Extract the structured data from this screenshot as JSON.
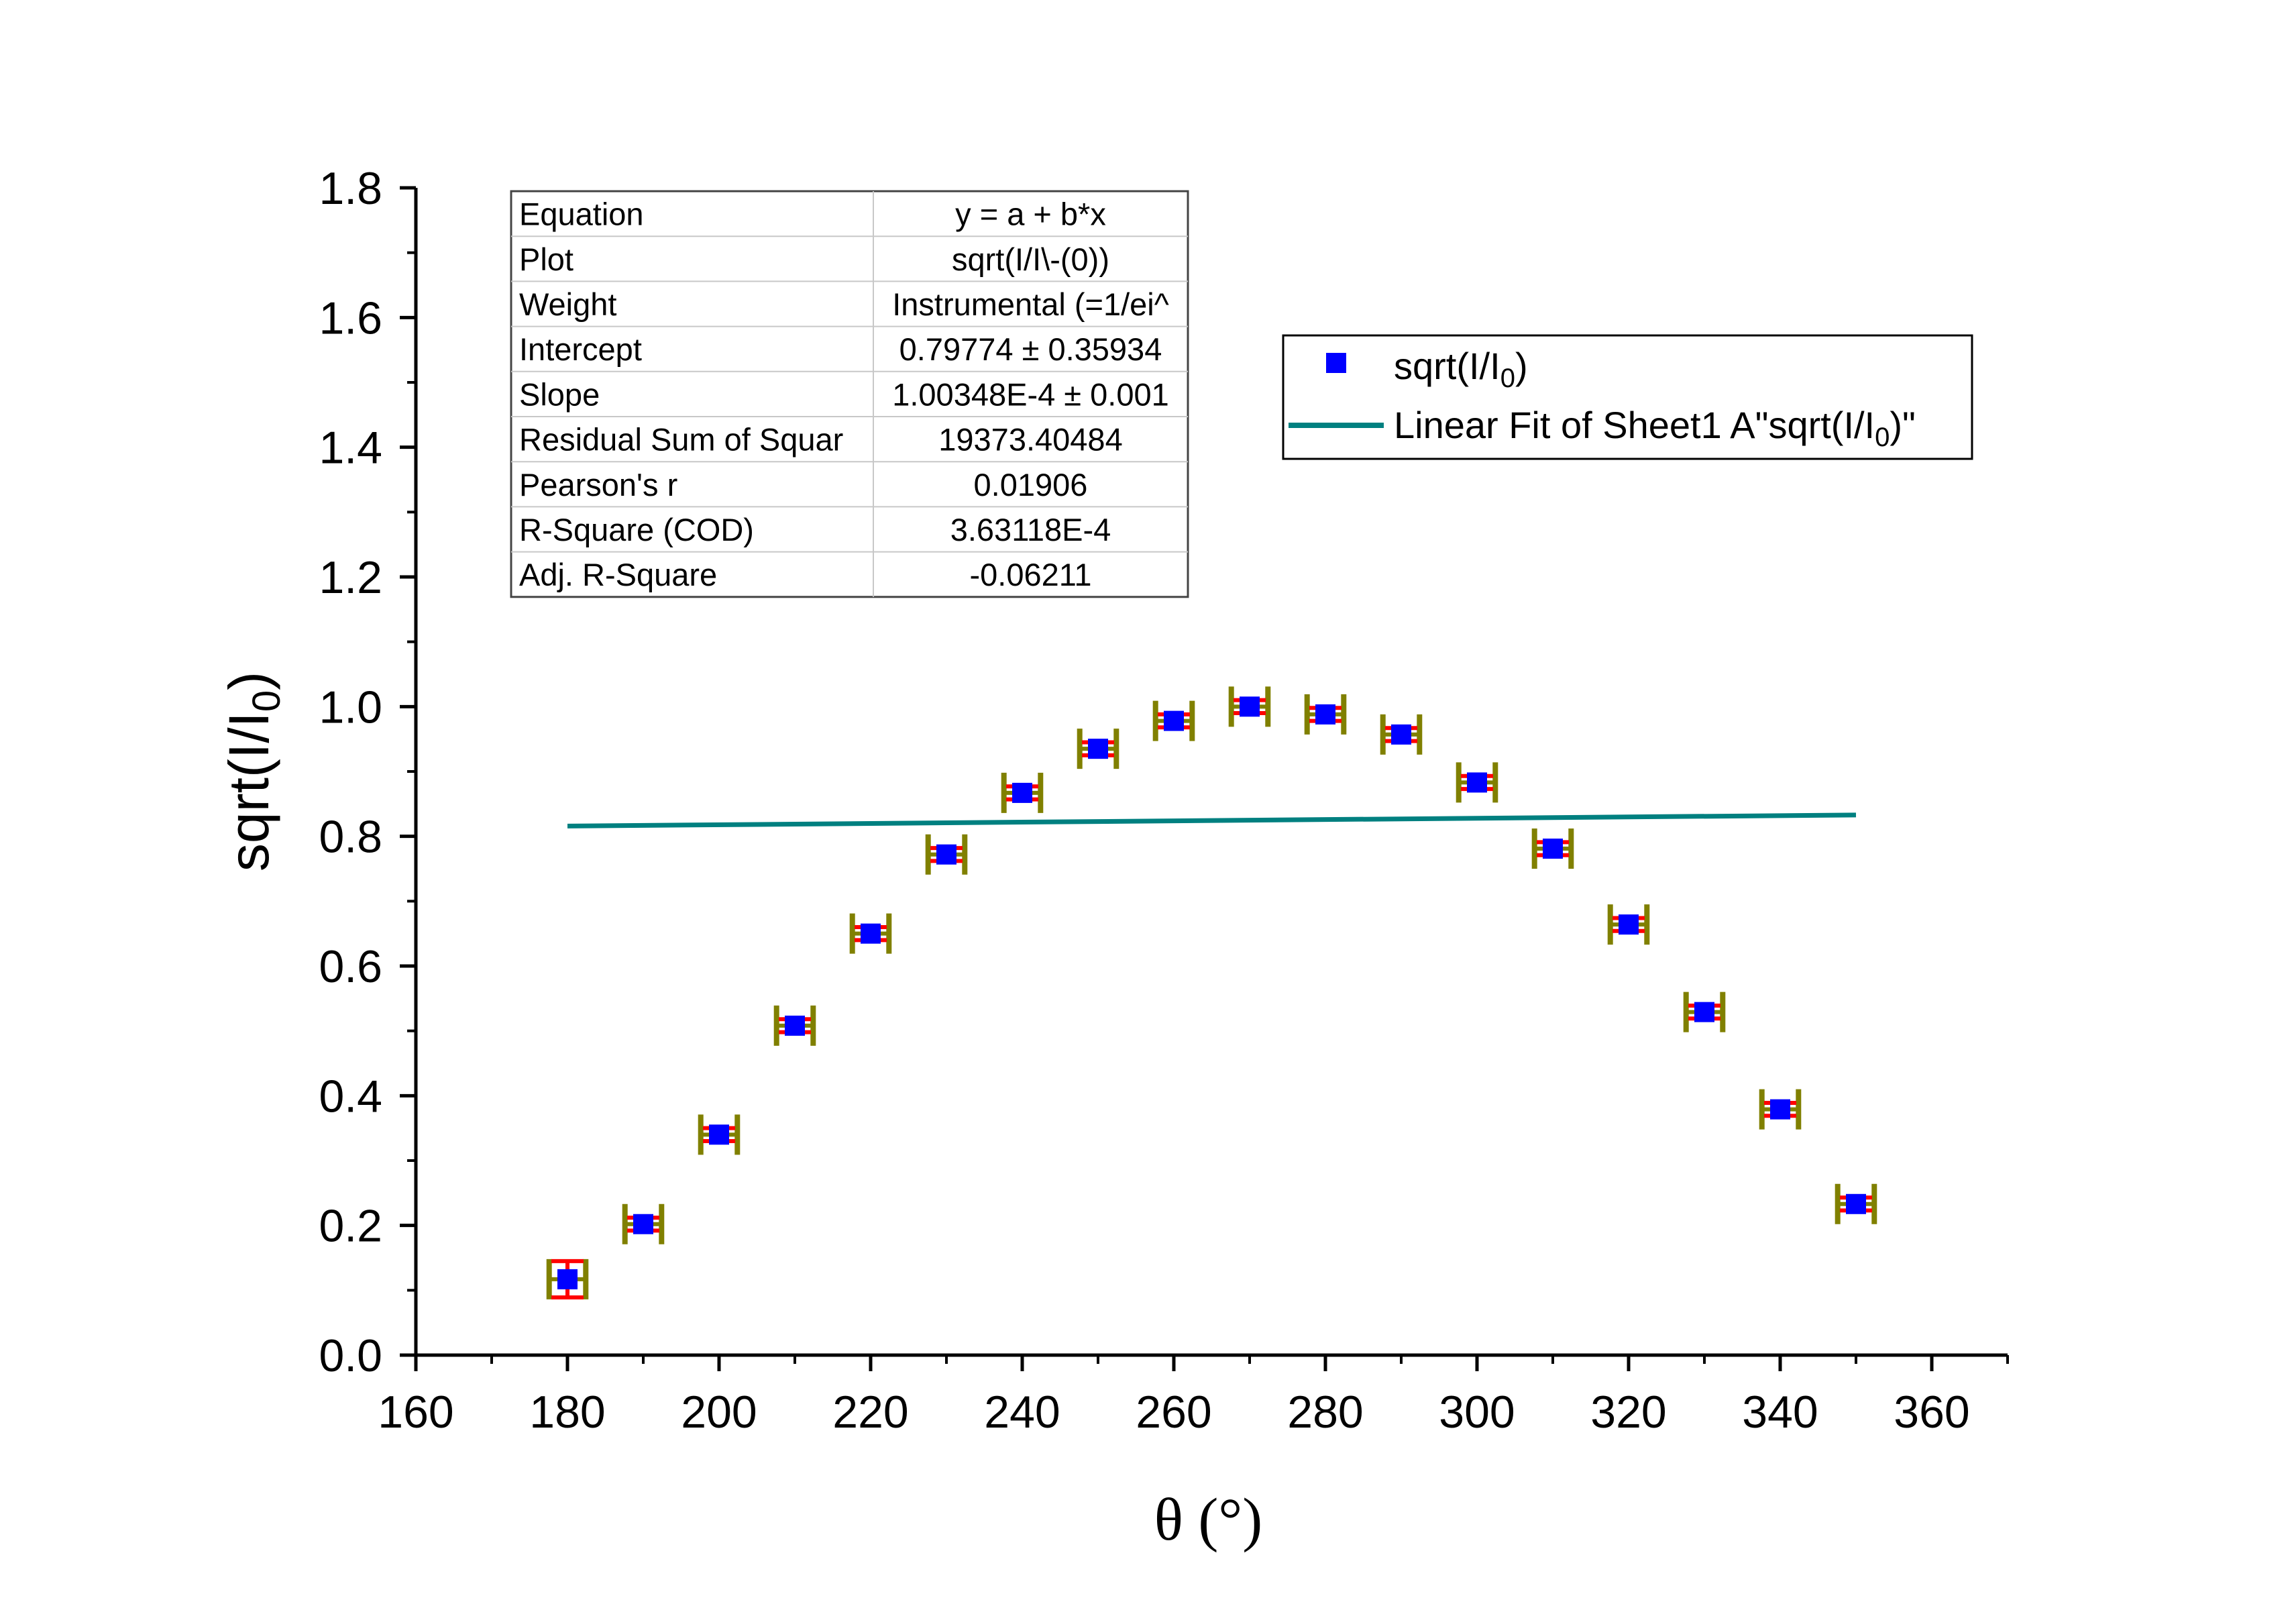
{
  "chart_data": {
    "type": "scatter",
    "title": "",
    "xlabel": "θ (°)",
    "ylabel_parts": {
      "main": "sqrt(I/I",
      "sub": "0",
      "tail": ")"
    },
    "xlim": [
      160,
      370
    ],
    "ylim": [
      0.0,
      1.8
    ],
    "xticks": [
      "160",
      "180",
      "200",
      "220",
      "240",
      "260",
      "280",
      "300",
      "320",
      "340",
      "360"
    ],
    "yticks": [
      "0.0",
      "0.2",
      "0.4",
      "0.6",
      "0.8",
      "1.0",
      "1.2",
      "1.4",
      "1.6",
      "1.8"
    ],
    "series": [
      {
        "name": "sqrt(I/I0)",
        "marker": "square",
        "color": "#0000ff",
        "x": [
          180,
          190,
          200,
          210,
          220,
          230,
          240,
          250,
          260,
          270,
          280,
          290,
          300,
          310,
          320,
          330,
          340,
          350
        ],
        "y": [
          0.117,
          0.202,
          0.34,
          0.508,
          0.65,
          0.772,
          0.867,
          0.935,
          0.978,
          1.0,
          0.988,
          0.957,
          0.883,
          0.781,
          0.664,
          0.529,
          0.379,
          0.233
        ],
        "yerr": [
          0.028,
          0.01,
          0.01,
          0.01,
          0.01,
          0.01,
          0.01,
          0.01,
          0.01,
          0.01,
          0.01,
          0.01,
          0.01,
          0.01,
          0.01,
          0.01,
          0.01,
          0.01
        ],
        "yerr_color": "#ff0000",
        "xerr": [
          1,
          1,
          1,
          1,
          1,
          1,
          1,
          1,
          1,
          1,
          1,
          1,
          1,
          1,
          1,
          1,
          1,
          1
        ],
        "xerr_color": "#808000"
      },
      {
        "name": "Linear Fit of Sheet1 A\"sqrt(I/I0)\"",
        "type": "line",
        "color": "#008080",
        "x": [
          180,
          350
        ],
        "y": [
          0.8158,
          0.8329
        ]
      }
    ],
    "legend": {
      "position": "top-right",
      "entries": [
        {
          "main": "sqrt(I/I",
          "sub": "0",
          "tail": ")"
        },
        {
          "main": "Linear Fit of Sheet1 A\"sqrt(I/I",
          "sub": "0",
          "tail": ")\""
        }
      ]
    },
    "fit_table": [
      [
        "Equation",
        "y = a + b*x"
      ],
      [
        "Plot",
        "sqrt(I/I\\-(0))"
      ],
      [
        "Weight",
        "Instrumental (=1/ei^"
      ],
      [
        "Intercept",
        "0.79774 ± 0.35934"
      ],
      [
        "Slope",
        "1.00348E-4 ± 0.001"
      ],
      [
        "Residual Sum of Squar",
        "19373.40484"
      ],
      [
        "Pearson's r",
        "0.01906"
      ],
      [
        "R-Square (COD)",
        "3.63118E-4"
      ],
      [
        "Adj. R-Square",
        "-0.06211"
      ]
    ],
    "grid": false
  }
}
